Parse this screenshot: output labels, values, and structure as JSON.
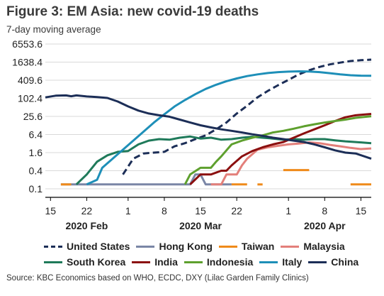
{
  "header": {
    "title": "Figure 3: EM Asia: new covid-19 deaths",
    "subtitle": "7-day moving average"
  },
  "source": "Source: KBC Economics based on WHO, ECDC, DXY (Lilac Garden Family Clinics)",
  "chart_data": {
    "type": "line",
    "title": "Figure 3: EM Asia: new covid-19 deaths",
    "subtitle": "7-day moving average",
    "y_scale": "log4",
    "ylim": [
      0.1,
      6553.6
    ],
    "y_ticks": [
      "6553.6",
      "1638.4",
      "409.6",
      "102.4",
      "25.6",
      "6.4",
      "1.6",
      "0.4",
      "0.1"
    ],
    "y_tick_values": [
      6553.6,
      1638.4,
      409.6,
      102.4,
      25.6,
      6.4,
      1.6,
      0.4,
      0.1
    ],
    "x_range": [
      "2020-02-14",
      "2020-04-17"
    ],
    "x_ticks": [
      {
        "date": "2020-02-15",
        "label": "15"
      },
      {
        "date": "2020-02-22",
        "label": "22"
      },
      {
        "date": "2020-03-01",
        "label": "1"
      },
      {
        "date": "2020-03-08",
        "label": "8"
      },
      {
        "date": "2020-03-15",
        "label": "15"
      },
      {
        "date": "2020-03-22",
        "label": "22"
      },
      {
        "date": "2020-04-01",
        "label": "1"
      },
      {
        "date": "2020-04-08",
        "label": "8"
      },
      {
        "date": "2020-04-15",
        "label": "15"
      }
    ],
    "x_month_labels": [
      {
        "date": "2020-02-22",
        "label": "2020 Feb"
      },
      {
        "date": "2020-03-15",
        "label": "2020 Mar"
      },
      {
        "date": "2020-04-08",
        "label": "2020 Apr"
      }
    ],
    "legend_position": "bottom",
    "series": [
      {
        "name": "United States",
        "color": "#1c2e57",
        "dash": "dash",
        "points": [
          [
            "2020-02-29",
            0.3
          ],
          [
            "2020-03-02",
            1.0
          ],
          [
            "2020-03-04",
            1.5
          ],
          [
            "2020-03-06",
            1.6
          ],
          [
            "2020-03-08",
            1.7
          ],
          [
            "2020-03-10",
            2.6
          ],
          [
            "2020-03-12",
            3.3
          ],
          [
            "2020-03-14",
            4.5
          ],
          [
            "2020-03-16",
            6.0
          ],
          [
            "2020-03-18",
            9.5
          ],
          [
            "2020-03-20",
            16
          ],
          [
            "2020-03-22",
            32
          ],
          [
            "2020-03-24",
            58
          ],
          [
            "2020-03-26",
            110
          ],
          [
            "2020-03-28",
            180
          ],
          [
            "2020-03-30",
            280
          ],
          [
            "2020-04-01",
            420
          ],
          [
            "2020-04-03",
            640
          ],
          [
            "2020-04-05",
            880
          ],
          [
            "2020-04-07",
            1130
          ],
          [
            "2020-04-09",
            1380
          ],
          [
            "2020-04-11",
            1580
          ],
          [
            "2020-04-13",
            1780
          ],
          [
            "2020-04-15",
            1900
          ],
          [
            "2020-04-17",
            1980
          ]
        ]
      },
      {
        "name": "Hong Kong",
        "color": "#7a86a6",
        "dash": "solid",
        "points": [
          [
            "2020-02-17",
            0.14
          ],
          [
            "2020-02-21",
            0.14
          ],
          [
            "2020-02-25",
            0.14
          ],
          [
            "2020-03-09",
            0.14
          ],
          [
            "2020-03-13",
            0.14
          ],
          [
            "2020-03-14",
            0.3
          ],
          [
            "2020-03-15",
            0.3
          ],
          [
            "2020-03-16",
            0.14
          ],
          [
            "2020-03-21",
            0.14
          ]
        ]
      },
      {
        "name": "Taiwan",
        "color": "#ef8a1a",
        "dash": "gaps",
        "points": [
          [
            "2020-02-17",
            0.14
          ],
          [
            "2020-02-19",
            0.14
          ],
          [
            "2020-03-21",
            0.14
          ],
          [
            "2020-03-24",
            0.14
          ],
          [
            "2020-03-26",
            0.14
          ],
          [
            "2020-03-27",
            0.14
          ],
          [
            "2020-03-31",
            0.42
          ],
          [
            "2020-04-05",
            0.42
          ],
          [
            "2020-04-13",
            0.14
          ],
          [
            "2020-04-17",
            0.14
          ]
        ]
      },
      {
        "name": "Malaysia",
        "color": "#e37f7a",
        "dash": "solid",
        "points": [
          [
            "2020-03-17",
            0.14
          ],
          [
            "2020-03-19",
            0.14
          ],
          [
            "2020-03-20",
            0.3
          ],
          [
            "2020-03-22",
            0.3
          ],
          [
            "2020-03-23",
            0.6
          ],
          [
            "2020-03-24",
            1.0
          ],
          [
            "2020-03-26",
            2.0
          ],
          [
            "2020-03-28",
            2.4
          ],
          [
            "2020-03-30",
            2.7
          ],
          [
            "2020-04-01",
            3.0
          ],
          [
            "2020-04-03",
            3.2
          ],
          [
            "2020-04-05",
            3.5
          ],
          [
            "2020-04-07",
            3.3
          ],
          [
            "2020-04-09",
            2.9
          ],
          [
            "2020-04-11",
            2.6
          ],
          [
            "2020-04-13",
            2.3
          ],
          [
            "2020-04-15",
            2.1
          ],
          [
            "2020-04-17",
            2.2
          ]
        ]
      },
      {
        "name": "South Korea",
        "color": "#1f7a5a",
        "dash": "solid",
        "points": [
          [
            "2020-02-20",
            0.14
          ],
          [
            "2020-02-22",
            0.3
          ],
          [
            "2020-02-24",
            0.8
          ],
          [
            "2020-02-26",
            1.3
          ],
          [
            "2020-02-28",
            1.7
          ],
          [
            "2020-03-01",
            1.8
          ],
          [
            "2020-03-03",
            3.0
          ],
          [
            "2020-03-05",
            4.0
          ],
          [
            "2020-03-07",
            4.5
          ],
          [
            "2020-03-09",
            4.3
          ],
          [
            "2020-03-11",
            5.0
          ],
          [
            "2020-03-13",
            5.5
          ],
          [
            "2020-03-15",
            4.7
          ],
          [
            "2020-03-17",
            5.0
          ],
          [
            "2020-03-19",
            4.3
          ],
          [
            "2020-03-21",
            4.5
          ],
          [
            "2020-03-23",
            5.0
          ],
          [
            "2020-03-25",
            5.4
          ],
          [
            "2020-03-27",
            5.0
          ],
          [
            "2020-03-29",
            4.7
          ],
          [
            "2020-03-31",
            4.3
          ],
          [
            "2020-04-02",
            4.5
          ],
          [
            "2020-04-04",
            4.3
          ],
          [
            "2020-04-06",
            4.5
          ],
          [
            "2020-04-08",
            4.5
          ],
          [
            "2020-04-10",
            4.1
          ],
          [
            "2020-04-12",
            3.8
          ],
          [
            "2020-04-14",
            3.6
          ],
          [
            "2020-04-17",
            3.3
          ]
        ]
      },
      {
        "name": "India",
        "color": "#8b0f0f",
        "dash": "solid",
        "points": [
          [
            "2020-03-13",
            0.14
          ],
          [
            "2020-03-15",
            0.3
          ],
          [
            "2020-03-17",
            0.3
          ],
          [
            "2020-03-19",
            0.4
          ],
          [
            "2020-03-20",
            0.4
          ],
          [
            "2020-03-21",
            0.6
          ],
          [
            "2020-03-23",
            1.2
          ],
          [
            "2020-03-25",
            1.8
          ],
          [
            "2020-03-27",
            2.4
          ],
          [
            "2020-03-29",
            3.0
          ],
          [
            "2020-03-31",
            3.6
          ],
          [
            "2020-04-02",
            5.0
          ],
          [
            "2020-04-04",
            7.0
          ],
          [
            "2020-04-06",
            9.5
          ],
          [
            "2020-04-08",
            13
          ],
          [
            "2020-04-10",
            18
          ],
          [
            "2020-04-12",
            24
          ],
          [
            "2020-04-14",
            28
          ],
          [
            "2020-04-17",
            31
          ]
        ]
      },
      {
        "name": "Indonesia",
        "color": "#5ea02e",
        "dash": "solid",
        "points": [
          [
            "2020-03-12",
            0.14
          ],
          [
            "2020-03-13",
            0.3
          ],
          [
            "2020-03-15",
            0.5
          ],
          [
            "2020-03-17",
            0.5
          ],
          [
            "2020-03-18",
            0.8
          ],
          [
            "2020-03-19",
            1.2
          ],
          [
            "2020-03-21",
            3.0
          ],
          [
            "2020-03-23",
            4.0
          ],
          [
            "2020-03-25",
            5.0
          ],
          [
            "2020-03-27",
            6.0
          ],
          [
            "2020-03-29",
            7.5
          ],
          [
            "2020-03-31",
            8.5
          ],
          [
            "2020-04-02",
            10
          ],
          [
            "2020-04-04",
            12
          ],
          [
            "2020-04-06",
            14
          ],
          [
            "2020-04-08",
            16
          ],
          [
            "2020-04-10",
            18
          ],
          [
            "2020-04-12",
            20
          ],
          [
            "2020-04-14",
            23
          ],
          [
            "2020-04-17",
            26
          ]
        ]
      },
      {
        "name": "Italy",
        "color": "#1e8fb8",
        "dash": "solid",
        "points": [
          [
            "2020-02-22",
            0.14
          ],
          [
            "2020-02-24",
            0.2
          ],
          [
            "2020-02-25",
            0.5
          ],
          [
            "2020-02-27",
            1.0
          ],
          [
            "2020-02-29",
            2.0
          ],
          [
            "2020-03-02",
            4.0
          ],
          [
            "2020-03-04",
            8.0
          ],
          [
            "2020-03-06",
            16
          ],
          [
            "2020-03-08",
            30
          ],
          [
            "2020-03-10",
            55
          ],
          [
            "2020-03-12",
            90
          ],
          [
            "2020-03-14",
            140
          ],
          [
            "2020-03-16",
            210
          ],
          [
            "2020-03-18",
            290
          ],
          [
            "2020-03-20",
            380
          ],
          [
            "2020-03-22",
            470
          ],
          [
            "2020-03-24",
            560
          ],
          [
            "2020-03-26",
            640
          ],
          [
            "2020-03-28",
            710
          ],
          [
            "2020-03-30",
            760
          ],
          [
            "2020-04-01",
            790
          ],
          [
            "2020-04-03",
            810
          ],
          [
            "2020-04-05",
            800
          ],
          [
            "2020-04-07",
            760
          ],
          [
            "2020-04-09",
            700
          ],
          [
            "2020-04-11",
            640
          ],
          [
            "2020-04-13",
            600
          ],
          [
            "2020-04-15",
            580
          ],
          [
            "2020-04-17",
            575
          ]
        ]
      },
      {
        "name": "China",
        "color": "#1c2e57",
        "dash": "solid",
        "points": [
          [
            "2020-02-14",
            110
          ],
          [
            "2020-02-16",
            125
          ],
          [
            "2020-02-18",
            128
          ],
          [
            "2020-02-19",
            120
          ],
          [
            "2020-02-20",
            128
          ],
          [
            "2020-02-22",
            118
          ],
          [
            "2020-02-24",
            113
          ],
          [
            "2020-02-26",
            105
          ],
          [
            "2020-02-28",
            80
          ],
          [
            "2020-03-01",
            55
          ],
          [
            "2020-03-03",
            40
          ],
          [
            "2020-03-05",
            32
          ],
          [
            "2020-03-07",
            28
          ],
          [
            "2020-03-09",
            25
          ],
          [
            "2020-03-11",
            20
          ],
          [
            "2020-03-13",
            16
          ],
          [
            "2020-03-15",
            13
          ],
          [
            "2020-03-17",
            11
          ],
          [
            "2020-03-19",
            9.5
          ],
          [
            "2020-03-21",
            8.5
          ],
          [
            "2020-03-23",
            7.5
          ],
          [
            "2020-03-25",
            6.5
          ],
          [
            "2020-03-27",
            5.8
          ],
          [
            "2020-03-29",
            5.0
          ],
          [
            "2020-03-31",
            4.5
          ],
          [
            "2020-04-02",
            4.0
          ],
          [
            "2020-04-04",
            3.6
          ],
          [
            "2020-04-06",
            3.0
          ],
          [
            "2020-04-08",
            2.4
          ],
          [
            "2020-04-10",
            1.9
          ],
          [
            "2020-04-12",
            1.6
          ],
          [
            "2020-04-14",
            1.5
          ],
          [
            "2020-04-17",
            1.0
          ]
        ]
      }
    ]
  },
  "legend": {
    "rows": [
      [
        {
          "label": "United States",
          "color": "#1c2e57",
          "style": "dashed"
        },
        {
          "label": "Hong Kong",
          "color": "#7a86a6",
          "style": "solid"
        },
        {
          "label": "Taiwan",
          "color": "#ef8a1a",
          "style": "solid"
        },
        {
          "label": "Malaysia",
          "color": "#e37f7a",
          "style": "solid"
        }
      ],
      [
        {
          "label": "South Korea",
          "color": "#1f7a5a",
          "style": "solid"
        },
        {
          "label": "India",
          "color": "#8b0f0f",
          "style": "solid"
        },
        {
          "label": "Indonesia",
          "color": "#5ea02e",
          "style": "solid"
        },
        {
          "label": "Italy",
          "color": "#1e8fb8",
          "style": "solid"
        },
        {
          "label": "China",
          "color": "#1c2e57",
          "style": "solid"
        }
      ]
    ]
  }
}
